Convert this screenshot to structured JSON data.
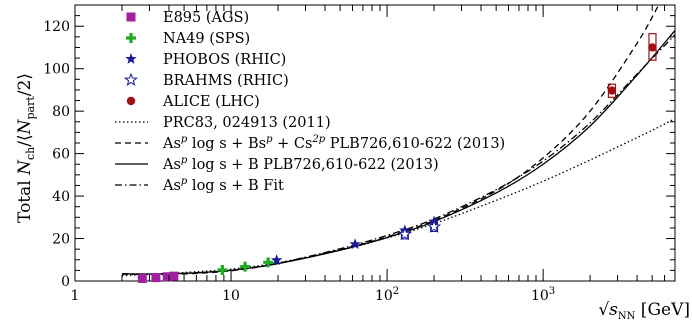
{
  "chart_data": {
    "type": "scatter",
    "ylabel": "Total N_ch/⟨N_part/2⟩",
    "xlabel": "√s_NN [GeV]",
    "xscale": "log",
    "xlim": [
      1,
      7000
    ],
    "ylim": [
      0,
      130
    ],
    "xticks": [
      {
        "value": 1,
        "base": "1",
        "exp": ""
      },
      {
        "value": 10,
        "base": "10",
        "exp": ""
      },
      {
        "value": 100,
        "base": "10",
        "exp": "2"
      },
      {
        "value": 1000,
        "base": "10",
        "exp": "3"
      }
    ],
    "yticks": [
      0,
      20,
      40,
      60,
      80,
      100,
      120
    ],
    "legend_position": "top-left",
    "series": [
      {
        "name": "E895 (AGS)",
        "kind": "points",
        "marker": "square",
        "color": "#a020a0",
        "points": [
          [
            2.7,
            1.2
          ],
          [
            3.3,
            1.6
          ],
          [
            3.9,
            2.0
          ],
          [
            4.3,
            2.3
          ]
        ]
      },
      {
        "name": "NA49 (SPS)",
        "kind": "points",
        "marker": "plus",
        "color": "#22aa22",
        "points": [
          [
            8.8,
            5.2
          ],
          [
            12.3,
            6.8
          ],
          [
            17.3,
            8.8
          ]
        ]
      },
      {
        "name": "PHOBOS (RHIC)",
        "kind": "points",
        "marker": "star",
        "color": "#1a1a9a",
        "points": [
          [
            19.6,
            9.8
          ],
          [
            62.4,
            17.3
          ],
          [
            130,
            23.8
          ],
          [
            200,
            28.0
          ]
        ]
      },
      {
        "name": "BRAHMS (RHIC)",
        "kind": "points",
        "marker": "star-open",
        "color": "#1a1a9a",
        "points": [
          [
            130,
            22.0
          ],
          [
            200,
            25.5
          ]
        ]
      },
      {
        "name": "ALICE (LHC)",
        "kind": "points",
        "marker": "circle",
        "color": "#a01010",
        "points": [
          [
            2760,
            89.7
          ],
          [
            5020,
            110.0
          ]
        ],
        "syst_boxes": [
          [
            2760,
            86.5,
            92.7
          ],
          [
            5020,
            104.0,
            116.5
          ]
        ]
      },
      {
        "name": "PRC83, 024913 (2011)",
        "kind": "line",
        "dash": "1.5 2.5",
        "color": "#000000",
        "points": [
          [
            2,
            2.5
          ],
          [
            3,
            3.2
          ],
          [
            5,
            4.0
          ],
          [
            10,
            5.6
          ],
          [
            20,
            8.6
          ],
          [
            50,
            14.5
          ],
          [
            100,
            20.3
          ],
          [
            200,
            27.0
          ],
          [
            500,
            38.0
          ],
          [
            1000,
            47.0
          ],
          [
            2000,
            57.0
          ],
          [
            5000,
            71.0
          ],
          [
            7000,
            76.5
          ]
        ]
      },
      {
        "name": "As^p log s + Bs^p + Cs^2p PLB726,610-622 (2013)",
        "kind": "line",
        "dash": "6 4",
        "color": "#000000",
        "points": [
          [
            2,
            3.2
          ],
          [
            3,
            3.1
          ],
          [
            5,
            3.3
          ],
          [
            10,
            4.8
          ],
          [
            20,
            8.2
          ],
          [
            50,
            14.8
          ],
          [
            100,
            20.8
          ],
          [
            200,
            28.5
          ],
          [
            500,
            42.5
          ],
          [
            1000,
            58.0
          ],
          [
            2000,
            80.0
          ],
          [
            4000,
            112.0
          ],
          [
            5500,
            130.0
          ]
        ]
      },
      {
        "name": "As^p log s + B PLB726,610-622 (2013)",
        "kind": "line",
        "dash": "",
        "color": "#000000",
        "points": [
          [
            2,
            3.4
          ],
          [
            3,
            3.3
          ],
          [
            5,
            3.6
          ],
          [
            10,
            5.0
          ],
          [
            20,
            8.2
          ],
          [
            50,
            14.5
          ],
          [
            100,
            20.5
          ],
          [
            200,
            28.0
          ],
          [
            500,
            41.5
          ],
          [
            1000,
            55.0
          ],
          [
            2000,
            73.0
          ],
          [
            4000,
            97.0
          ],
          [
            7000,
            118.0
          ]
        ]
      },
      {
        "name": "As^p log s + B Fit",
        "kind": "line",
        "dash": "7 3 1.5 3",
        "color": "#000000",
        "points": [
          [
            2,
            3.4
          ],
          [
            3,
            3.3
          ],
          [
            5,
            3.6
          ],
          [
            10,
            5.1
          ],
          [
            20,
            8.4
          ],
          [
            50,
            15.2
          ],
          [
            100,
            21.5
          ],
          [
            200,
            29.2
          ],
          [
            500,
            43.0
          ],
          [
            1000,
            56.5
          ],
          [
            2000,
            74.5
          ],
          [
            4000,
            97.5
          ],
          [
            7000,
            116.0
          ]
        ]
      }
    ],
    "legend": [
      {
        "series": 0,
        "text": "E895 (AGS)"
      },
      {
        "series": 1,
        "text": "NA49 (SPS)"
      },
      {
        "series": 2,
        "text": "PHOBOS (RHIC)"
      },
      {
        "series": 3,
        "text": "BRAHMS (RHIC)"
      },
      {
        "series": 4,
        "text": "ALICE (LHC)"
      },
      {
        "series": 5,
        "text": "PRC83, 024913 (2011)"
      },
      {
        "series": 6,
        "text": "As^p log s + Bs^p + Cs^2p PLB726,610-622 (2013)"
      },
      {
        "series": 7,
        "text": "As^p log s + B PLB726,610-622 (2013)"
      },
      {
        "series": 8,
        "text": "As^p log s + B Fit"
      }
    ]
  }
}
